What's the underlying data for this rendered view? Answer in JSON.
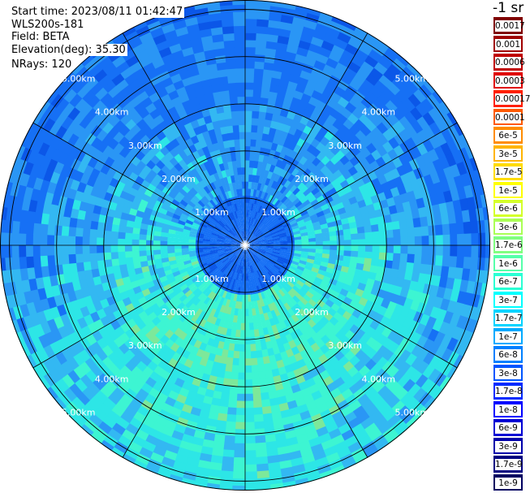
{
  "info": {
    "start_time": "Start time: 2023/08/11 01:42:47",
    "instrument": "WLS200s-181",
    "field": "Field: BETA",
    "elevation": "Elevation(deg): 35.30",
    "nrays": "NRays: 120"
  },
  "colorbar": {
    "unit_label": "-1 sr",
    "levels": [
      "0.0017",
      "0.001",
      "0.0006",
      "0.0003",
      "0.00017",
      "0.0001",
      "6e-5",
      "3e-5",
      "1.7e-5",
      "1e-5",
      "6e-6",
      "3e-6",
      "1.7e-6",
      "1e-6",
      "6e-7",
      "3e-7",
      "1.7e-7",
      "1e-7",
      "6e-8",
      "3e-8",
      "1.7e-8",
      "1e-8",
      "6e-9",
      "3e-9",
      "1.7e-9",
      "1e-9"
    ],
    "colors": [
      "#800000",
      "#a00000",
      "#c00000",
      "#e00000",
      "#ff2000",
      "#ff5a00",
      "#ff8c00",
      "#ffb400",
      "#ffdc00",
      "#ffff00",
      "#d4ff2a",
      "#aaff55",
      "#80ff80",
      "#55ffaa",
      "#2affd4",
      "#00ffff",
      "#00d4ff",
      "#00aaff",
      "#0080ff",
      "#0055ff",
      "#002aff",
      "#0000ff",
      "#0000d4",
      "#0000aa",
      "#000080",
      "#000060"
    ]
  },
  "chart_data": {
    "type": "heatmap",
    "projection": "polar PPI scan",
    "range_ring_labels": [
      "1.00km",
      "2.00km",
      "3.00km",
      "4.00km",
      "5.00km"
    ],
    "range_rings_km": [
      1,
      2,
      3,
      4,
      5
    ],
    "max_range_km": 5.2,
    "radial_spokes_deg": [
      0,
      30,
      60,
      90,
      120,
      150,
      180,
      210,
      240,
      270,
      300,
      330
    ],
    "n_rays": 120,
    "field": "BETA",
    "color_scale": "log",
    "value_range": [
      1e-09,
      0.0017
    ],
    "dominant_values": {
      "near_range_0_to_1km": 1e-07,
      "mid_range_1_to_3km_south_east": 1.7e-06,
      "far_range_north": 1e-07,
      "far_range_south": 1e-06
    }
  }
}
